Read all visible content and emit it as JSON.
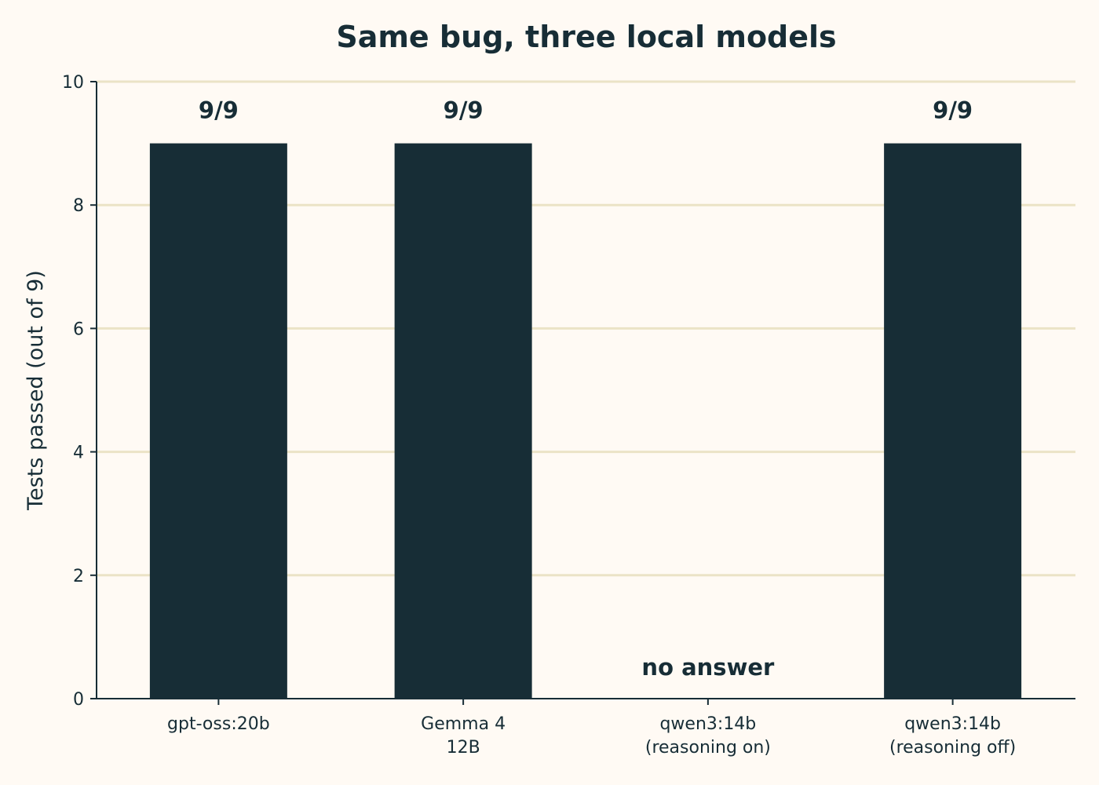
{
  "chart_data": {
    "type": "bar",
    "title": "Same bug, three local models",
    "xlabel": "",
    "ylabel": "Tests passed (out of 9)",
    "ylim": [
      0,
      10
    ],
    "yticks": [
      0,
      2,
      4,
      6,
      8,
      10
    ],
    "grid": true,
    "categories": [
      [
        "gpt-oss:20b"
      ],
      [
        "Gemma 4",
        "12B"
      ],
      [
        "qwen3:14b",
        "(reasoning on)"
      ],
      [
        "qwen3:14b",
        "(reasoning off)"
      ]
    ],
    "values": [
      9,
      9,
      null,
      9
    ],
    "data_labels": [
      "9/9",
      "9/9",
      "no answer",
      "9/9"
    ],
    "colors": {
      "bar": "#172d36",
      "grid": "#ebe3c6",
      "background": "#fffaf4",
      "text": "#172d36"
    }
  }
}
